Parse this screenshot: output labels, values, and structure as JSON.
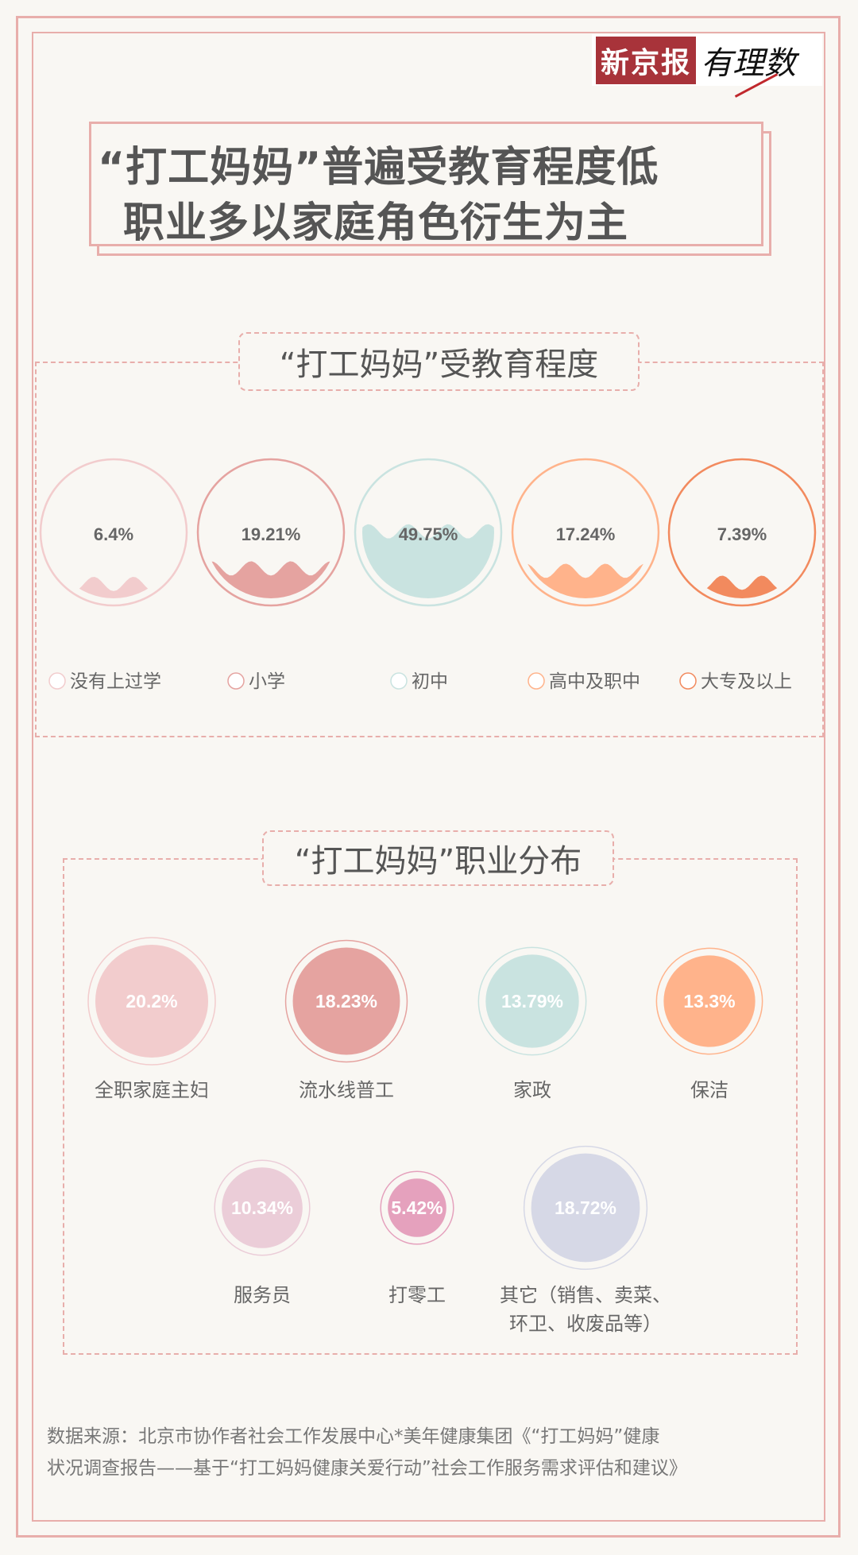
{
  "logo": {
    "brand": "新京报",
    "column": "有理数"
  },
  "title": {
    "line1": "“打工妈妈”普遍受教育程度低",
    "line2": "职业多以家庭角色衍生为主"
  },
  "chart_data": [
    {
      "type": "liquid-fill",
      "title": "“打工妈妈”受教育程度",
      "categories": [
        "没有上过学",
        "小学",
        "初中",
        "高中及职中",
        "大专及以上"
      ],
      "values": [
        6.4,
        19.21,
        49.75,
        17.24,
        7.39
      ],
      "labels": [
        "6.4%",
        "19.21%",
        "49.75%",
        "17.24%",
        "7.39%"
      ],
      "colors": [
        "#f2cccd",
        "#e5a3a0",
        "#c9e3e0",
        "#ffb38b",
        "#f28a5e"
      ],
      "legend_position": "bottom"
    },
    {
      "type": "bubble",
      "title": "“打工妈妈”职业分布",
      "categories": [
        "全职家庭主妇",
        "流水线普工",
        "家政",
        "保洁",
        "服务员",
        "打零工",
        "其它（销售、卖菜、|环卫、收废品等）"
      ],
      "category_lines": [
        [
          "全职家庭主妇"
        ],
        [
          "流水线普工"
        ],
        [
          "家政"
        ],
        [
          "保洁"
        ],
        [
          "服务员"
        ],
        [
          "打零工"
        ],
        [
          "其它（销售、卖菜、",
          "环卫、收废品等）"
        ]
      ],
      "values": [
        20.2,
        18.23,
        13.79,
        13.3,
        10.34,
        5.42,
        18.72
      ],
      "labels": [
        "20.2%",
        "18.23%",
        "13.79%",
        "13.3%",
        "10.34%",
        "5.42%",
        "18.72%"
      ],
      "colors": [
        "#f2cccd",
        "#e5a3a0",
        "#c9e3e0",
        "#ffb38b",
        "#ebcdd8",
        "#e5a1bd",
        "#d6d8e6"
      ]
    }
  ],
  "source": {
    "line1": "数据来源：北京市协作者社会工作发展中心*美年健康集团《“打工妈妈”健康",
    "line2": "状况调查报告——基于“打工妈妈健康关爱行动”社会工作服务需求评估和建议》"
  }
}
